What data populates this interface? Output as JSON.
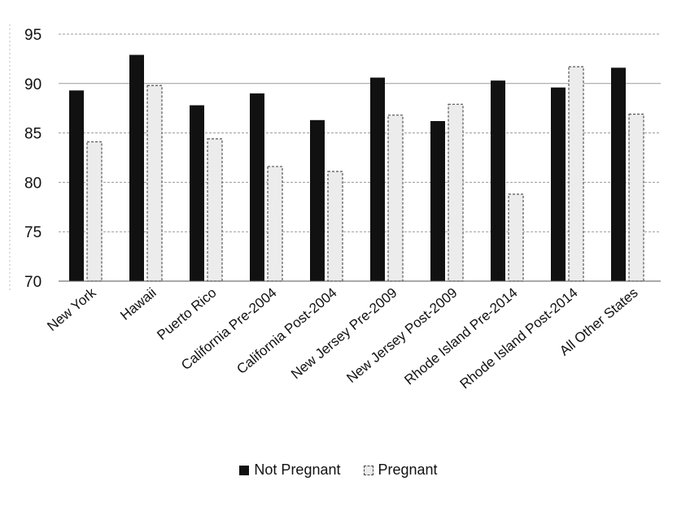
{
  "chart_data": {
    "type": "bar",
    "categories": [
      "New York",
      "Hawaii",
      "Puerto Rico",
      "California Pre-2004",
      "California Post-2004",
      "New Jersey Pre-2009",
      "New Jersey Post-2009",
      "Rhode Island Pre-2014",
      "Rhode Island Post-2014",
      "All Other States"
    ],
    "series": [
      {
        "name": "Not Pregnant",
        "color": "#111111",
        "values": [
          89.3,
          92.9,
          87.8,
          89.0,
          86.3,
          90.6,
          86.2,
          90.3,
          89.6,
          91.6
        ]
      },
      {
        "name": "Pregnant",
        "color": "#ececec",
        "values": [
          84.1,
          89.8,
          84.4,
          81.6,
          81.1,
          86.8,
          87.9,
          78.8,
          91.7,
          86.9
        ]
      }
    ],
    "ylim": [
      70,
      95
    ],
    "yticks": [
      "70",
      "75",
      "80",
      "85",
      "90",
      "95"
    ],
    "grid": true,
    "legend_position": "bottom"
  },
  "legend": {
    "items": [
      "Not Pregnant",
      "Pregnant"
    ]
  }
}
